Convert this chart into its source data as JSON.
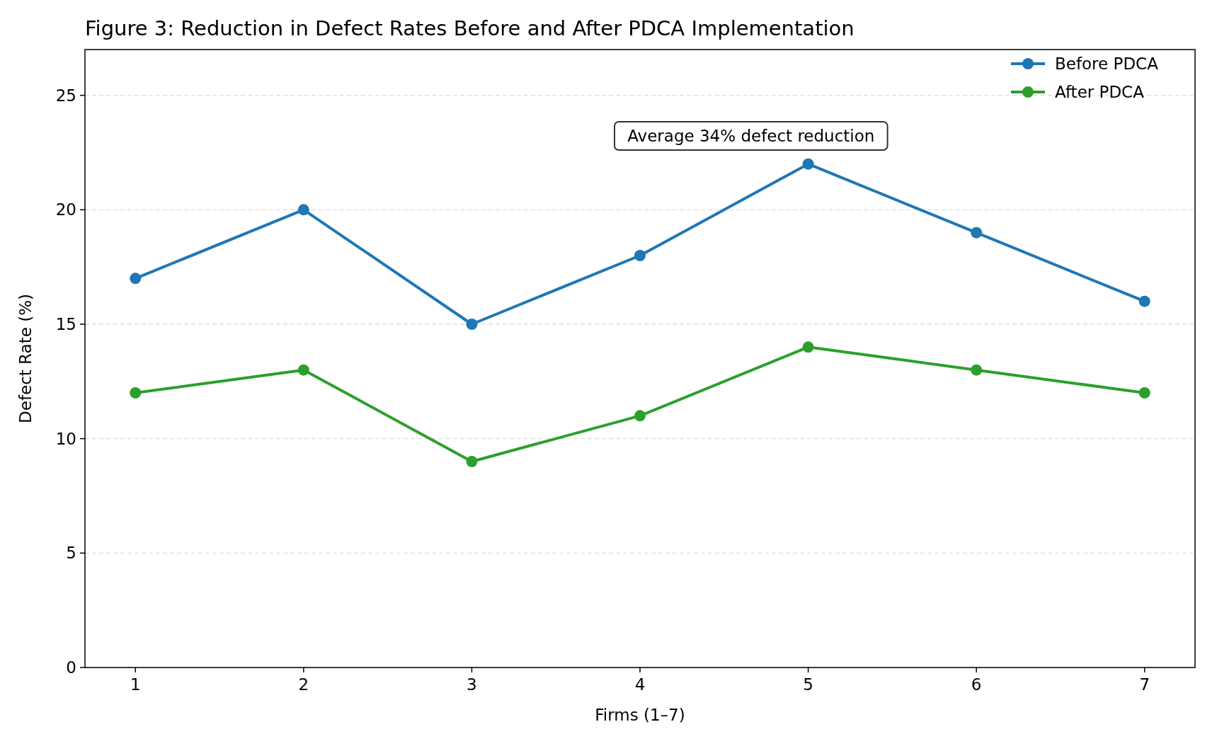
{
  "chart_data": {
    "type": "line",
    "title": "Figure 3: Reduction in Defect Rates Before and After PDCA Implementation",
    "xlabel": "Firms (1–7)",
    "ylabel": "Defect Rate (%)",
    "x": [
      1,
      2,
      3,
      4,
      5,
      6,
      7
    ],
    "series": [
      {
        "name": "Before PDCA",
        "color": "#1f77b4",
        "values": [
          17,
          20,
          15,
          18,
          22,
          19,
          16
        ]
      },
      {
        "name": "After PDCA",
        "color": "#2ca02c",
        "values": [
          12,
          13,
          9,
          11,
          14,
          13,
          12
        ]
      }
    ],
    "xlim": [
      0.7,
      7.3
    ],
    "xticks": [
      1,
      2,
      3,
      4,
      5,
      6,
      7
    ],
    "ylim": [
      0,
      27
    ],
    "yticks": [
      0,
      5,
      10,
      15,
      20,
      25
    ],
    "grid": "y",
    "legend": "top right",
    "marker": "circle",
    "line_style": "solid",
    "annotations": [
      "Average 34% defect reduction"
    ]
  }
}
